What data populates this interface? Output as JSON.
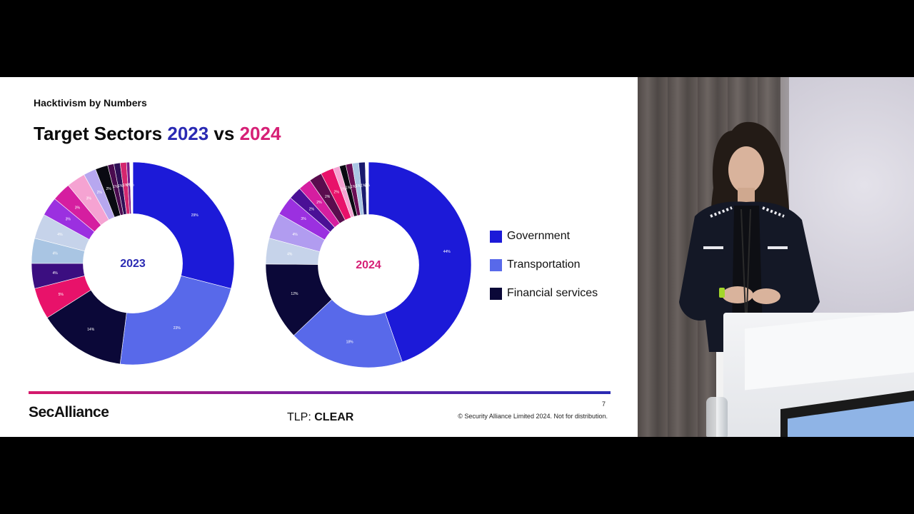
{
  "slide": {
    "kicker": "Hacktivism by Numbers",
    "title": {
      "prefix": "Target Sectors ",
      "year1": "2023",
      "middle": " vs ",
      "year2": "2024"
    },
    "legend": [
      {
        "label": "Government",
        "color": "#1c1ad8"
      },
      {
        "label": "Transportation",
        "color": "#5869ea"
      },
      {
        "label": "Financial services",
        "color": "#0b0838"
      }
    ],
    "footer": {
      "logo": "SecAlliance",
      "tlp_prefix": "TLP: ",
      "tlp_level": "CLEAR",
      "page_number": "7",
      "copyright": "© Security Alliance Limited 2024. Not for distribution."
    }
  },
  "chart_data": [
    {
      "type": "pie",
      "center_label": "2023",
      "center_color": "#2a2ab3",
      "slices": [
        {
          "label": "29%",
          "value": 29,
          "color": "#1c1ad8"
        },
        {
          "label": "23%",
          "value": 23,
          "color": "#5869ea"
        },
        {
          "label": "14%",
          "value": 14,
          "color": "#0b0838"
        },
        {
          "label": "5%",
          "value": 5,
          "color": "#e8126a"
        },
        {
          "label": "4%",
          "value": 4,
          "color": "#3b0e80"
        },
        {
          "label": "4%",
          "value": 4,
          "color": "#a9c5e3"
        },
        {
          "label": "4%",
          "value": 4,
          "color": "#c6d3ea"
        },
        {
          "label": "3%",
          "value": 3,
          "color": "#9b30e0"
        },
        {
          "label": "3%",
          "value": 3,
          "color": "#d51ea0"
        },
        {
          "label": "3%",
          "value": 3,
          "color": "#f5a3d2"
        },
        {
          "label": "2%",
          "value": 2,
          "color": "#b7a7ef"
        },
        {
          "label": "2%",
          "value": 2,
          "color": "#0a0a12"
        },
        {
          "label": "1%",
          "value": 1,
          "color": "#4a0a4f"
        },
        {
          "label": "1%",
          "value": 1,
          "color": "#2e0f55"
        },
        {
          "label": "1%",
          "value": 1,
          "color": "#d4266e"
        },
        {
          "label": "0%",
          "value": 0.5,
          "color": "#7a1a8a"
        },
        {
          "label": "0%",
          "value": 0.5,
          "color": "#ffffff"
        }
      ]
    },
    {
      "type": "pie",
      "center_label": "2024",
      "center_color": "#d62076",
      "slices": [
        {
          "label": "44%",
          "value": 44,
          "color": "#1c1ad8"
        },
        {
          "label": "18%",
          "value": 18,
          "color": "#5869ea"
        },
        {
          "label": "12%",
          "value": 12,
          "color": "#0b0838"
        },
        {
          "label": "4%",
          "value": 4,
          "color": "#c6d3ea"
        },
        {
          "label": "4%",
          "value": 4,
          "color": "#b19cf0"
        },
        {
          "label": "3%",
          "value": 3,
          "color": "#9b30e0"
        },
        {
          "label": "2%",
          "value": 2,
          "color": "#4a1096"
        },
        {
          "label": "2%",
          "value": 2,
          "color": "#d51ea0"
        },
        {
          "label": "2%",
          "value": 2,
          "color": "#5a0c4e"
        },
        {
          "label": "2%",
          "value": 2,
          "color": "#e8126a"
        },
        {
          "label": "1%",
          "value": 1,
          "color": "#f5a3d2"
        },
        {
          "label": "1%",
          "value": 1,
          "color": "#0a0a12"
        },
        {
          "label": "1%",
          "value": 1,
          "color": "#6a0d55"
        },
        {
          "label": "1%",
          "value": 1,
          "color": "#a9c5e3"
        },
        {
          "label": "1%",
          "value": 1,
          "color": "#1a1a6e"
        },
        {
          "label": "0%",
          "value": 0.5,
          "color": "#ffffff"
        }
      ]
    }
  ]
}
